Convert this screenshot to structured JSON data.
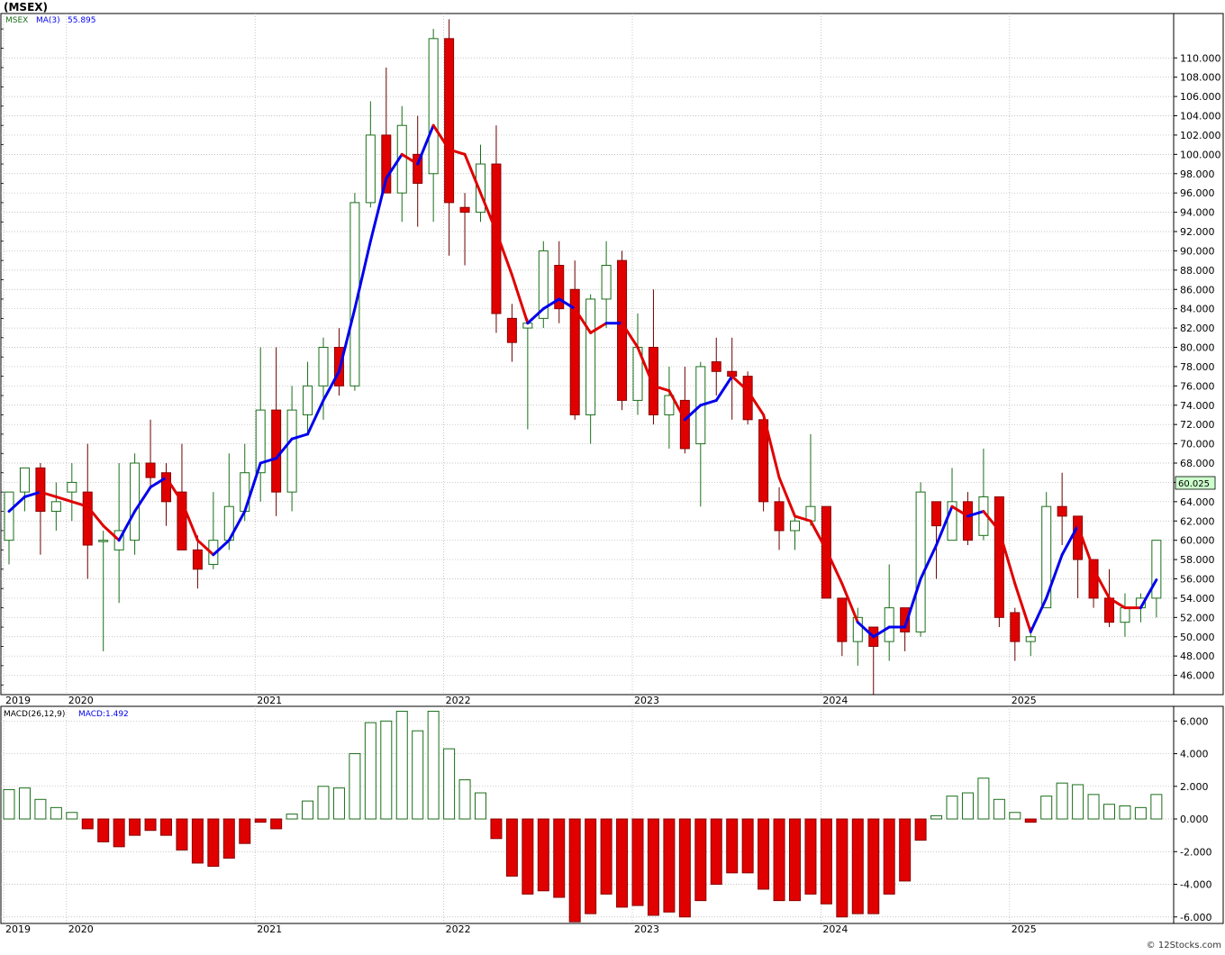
{
  "title": "(MSEX)",
  "watermark": "© 12Stocks.com",
  "colors": {
    "up": "#1a6e1a",
    "down": "#e00000",
    "ma_up": "#0000ee",
    "ma_down": "#e00000",
    "grid": "#b0b0b0",
    "axis": "#000000",
    "price_badge_bg": "#ccffcc"
  },
  "chart_data": [
    {
      "type": "candlestick",
      "legend": {
        "symbol": "MSEX",
        "ma_label": "MA(3)",
        "ma_value": "55.895"
      },
      "last_price_label": "60.025",
      "ylim": [
        44.0,
        114.6
      ],
      "y_ticks": [
        46,
        48,
        50,
        52,
        54,
        56,
        58,
        60,
        62,
        64,
        66,
        68,
        70,
        72,
        74,
        76,
        78,
        80,
        82,
        84,
        86,
        88,
        90,
        92,
        94,
        96,
        98,
        100,
        102,
        104,
        106,
        108,
        110
      ],
      "y_tick_labels": [
        "46.000",
        "48.000",
        "50.000",
        "52.000",
        "54.000",
        "56.000",
        "58.000",
        "60.000",
        "62.000",
        "64.000",
        "66.000",
        "68.000",
        "70.000",
        "72.000",
        "74.000",
        "76.000",
        "78.000",
        "80.000",
        "82.000",
        "84.000",
        "86.000",
        "88.000",
        "90.000",
        "92.000",
        "94.000",
        "96.000",
        "98.000",
        "100.000",
        "102.000",
        "104.000",
        "106.000",
        "108.000",
        "110.000"
      ],
      "x_label_months": [
        0,
        4,
        16,
        28,
        40,
        52,
        64
      ],
      "x_labels": [
        "2019",
        "2020",
        "2021",
        "2022",
        "2023",
        "2024",
        "2025"
      ],
      "x_count": 75,
      "candles": [
        [
          60,
          65,
          57.5,
          65
        ],
        [
          65,
          67.5,
          63,
          67.5
        ],
        [
          67.5,
          68,
          58.5,
          63
        ],
        [
          63,
          66,
          61,
          64
        ],
        [
          65,
          68,
          62,
          66
        ],
        [
          65,
          70,
          56,
          59.5
        ],
        [
          60,
          61,
          48.5,
          60
        ],
        [
          59,
          68,
          53.5,
          61
        ],
        [
          60,
          69,
          58.5,
          68
        ],
        [
          68,
          72.5,
          65.5,
          66.5
        ],
        [
          67,
          68,
          61.5,
          64
        ],
        [
          65,
          70,
          59,
          59
        ],
        [
          59,
          60.5,
          55,
          57
        ],
        [
          57.5,
          65,
          57,
          60
        ],
        [
          60,
          69,
          59,
          63.5
        ],
        [
          63,
          70,
          62,
          67
        ],
        [
          67,
          80,
          64,
          73.5
        ],
        [
          73.5,
          80,
          62.5,
          65
        ],
        [
          65,
          76,
          63,
          73.5
        ],
        [
          73,
          78.5,
          71,
          76
        ],
        [
          76,
          81,
          72.5,
          80
        ],
        [
          80,
          82,
          75,
          76
        ],
        [
          76,
          96,
          75.5,
          95
        ],
        [
          95,
          105.5,
          94.5,
          102
        ],
        [
          102,
          109,
          96,
          96
        ],
        [
          96,
          105,
          93,
          103
        ],
        [
          100,
          104,
          92.5,
          97
        ],
        [
          98,
          113,
          93,
          112
        ],
        [
          112,
          114,
          89.5,
          95
        ],
        [
          94.5,
          96,
          88.5,
          94
        ],
        [
          94,
          101,
          93,
          99
        ],
        [
          99,
          103,
          81.5,
          83.5
        ],
        [
          83,
          84.5,
          78.5,
          80.5
        ],
        [
          82,
          83,
          71.5,
          82.5
        ],
        [
          83,
          91,
          82,
          90
        ],
        [
          88.5,
          91,
          82.5,
          84
        ],
        [
          86,
          89,
          72.5,
          73
        ],
        [
          73,
          85.5,
          70,
          85
        ],
        [
          85,
          91,
          82,
          88.5
        ],
        [
          89,
          90,
          73.5,
          74.5
        ],
        [
          74.5,
          83.5,
          73,
          80
        ],
        [
          80,
          86,
          72,
          73
        ],
        [
          73,
          78,
          69.5,
          75
        ],
        [
          74.5,
          78,
          69,
          69.5
        ],
        [
          70,
          78.5,
          63.5,
          78
        ],
        [
          78.5,
          81,
          75,
          77.5
        ],
        [
          77.5,
          81,
          72.5,
          77
        ],
        [
          77,
          77.5,
          72,
          72.5
        ],
        [
          72.5,
          73,
          63,
          64
        ],
        [
          64,
          65.5,
          59,
          61
        ],
        [
          61,
          62.5,
          59,
          62
        ],
        [
          62,
          71,
          61.5,
          63.5
        ],
        [
          63.5,
          63.5,
          54,
          54
        ],
        [
          54,
          54,
          48,
          49.5
        ],
        [
          49.5,
          53,
          47,
          52
        ],
        [
          51,
          51,
          44,
          49
        ],
        [
          49.5,
          57.5,
          47.5,
          53
        ],
        [
          53,
          53,
          48.5,
          50.5
        ],
        [
          50.5,
          66,
          50,
          65
        ],
        [
          64,
          64,
          56,
          61.5
        ],
        [
          60,
          67.5,
          60,
          64
        ],
        [
          64,
          65,
          59.5,
          60
        ],
        [
          60.5,
          69.5,
          60,
          64.5
        ],
        [
          64.5,
          64.5,
          51,
          52
        ],
        [
          52.5,
          53,
          47.5,
          49.5
        ],
        [
          49.5,
          51,
          48,
          50
        ],
        [
          53,
          65,
          53,
          63.5
        ],
        [
          63.5,
          67,
          59.5,
          62.5
        ],
        [
          62.5,
          62.5,
          54,
          58
        ],
        [
          58,
          58,
          53,
          54
        ],
        [
          54,
          57,
          51,
          51.5
        ],
        [
          51.5,
          54.5,
          50,
          53
        ],
        [
          53,
          54.5,
          51.5,
          54
        ],
        [
          54,
          60,
          52,
          60
        ]
      ],
      "ma3": [
        63,
        64.5,
        65,
        64.5,
        64,
        63.5,
        61.5,
        60,
        63,
        65.5,
        66.5,
        64,
        60,
        58.5,
        60,
        63,
        68,
        68.5,
        70.5,
        71,
        74.5,
        77.5,
        84,
        91,
        97.5,
        100,
        99,
        103,
        100.5,
        100,
        96,
        92,
        87.5,
        82.5,
        84,
        85,
        84,
        81.5,
        82.5,
        82.5,
        80,
        76,
        75.5,
        72.5,
        74,
        74.5,
        77,
        75.5,
        73,
        66.5,
        62.5,
        62,
        59,
        55.5,
        51.5,
        50,
        51,
        51,
        56,
        59.5,
        63.5,
        62.5,
        63,
        61,
        55.5,
        50.5,
        54,
        58.5,
        61.5,
        57,
        54,
        53,
        53,
        55.9
      ],
      "ma_color_up": [
        true,
        true,
        false,
        false,
        false,
        false,
        false,
        true,
        true,
        true,
        false,
        false,
        false,
        true,
        true,
        true,
        true,
        true,
        true,
        true,
        true,
        true,
        true,
        true,
        true,
        false,
        true,
        false,
        false,
        false,
        false,
        false,
        false,
        true,
        true,
        true,
        false,
        false,
        true,
        false,
        false,
        false,
        false,
        true,
        true,
        true,
        false,
        false,
        false,
        false,
        false,
        false,
        false,
        false,
        true,
        true,
        true,
        true,
        true,
        true,
        false,
        true,
        false,
        false,
        false,
        true,
        true,
        true,
        false,
        false,
        false,
        false,
        true,
        true
      ]
    },
    {
      "type": "bar",
      "legend": {
        "label": "MACD(26,12,9)",
        "value_label": "MACD:1.492"
      },
      "ylim": [
        -6.4,
        6.9
      ],
      "y_ticks": [
        -6,
        -4,
        -2,
        0,
        2,
        4,
        6
      ],
      "y_tick_labels": [
        "-6.000",
        "-4.000",
        "-2.000",
        "0.000",
        "2.000",
        "4.000",
        "6.000"
      ],
      "x_label_months": [
        0,
        4,
        16,
        28,
        40,
        52,
        64
      ],
      "x_labels": [
        "2019",
        "2020",
        "2021",
        "2022",
        "2023",
        "2024",
        "2025"
      ],
      "values": [
        1.8,
        1.9,
        1.2,
        0.7,
        0.4,
        -0.6,
        -1.4,
        -1.7,
        -1.0,
        -0.7,
        -1.0,
        -1.9,
        -2.7,
        -2.9,
        -2.4,
        -1.5,
        -0.2,
        -0.6,
        0.3,
        1.1,
        2.0,
        1.9,
        4.0,
        5.9,
        6.0,
        6.6,
        5.4,
        6.6,
        4.3,
        2.4,
        1.6,
        -1.2,
        -3.5,
        -4.6,
        -4.4,
        -4.8,
        -6.3,
        -5.8,
        -4.6,
        -5.4,
        -5.3,
        -5.9,
        -5.7,
        -6.0,
        -5.0,
        -4.0,
        -3.3,
        -3.3,
        -4.3,
        -5.0,
        -5.0,
        -4.6,
        -5.2,
        -6.0,
        -5.8,
        -5.8,
        -4.6,
        -3.8,
        -1.3,
        0.2,
        1.4,
        1.6,
        2.5,
        1.2,
        0.4,
        -0.2,
        1.4,
        2.2,
        2.1,
        1.5,
        0.9,
        0.8,
        0.7,
        1.5
      ]
    }
  ]
}
